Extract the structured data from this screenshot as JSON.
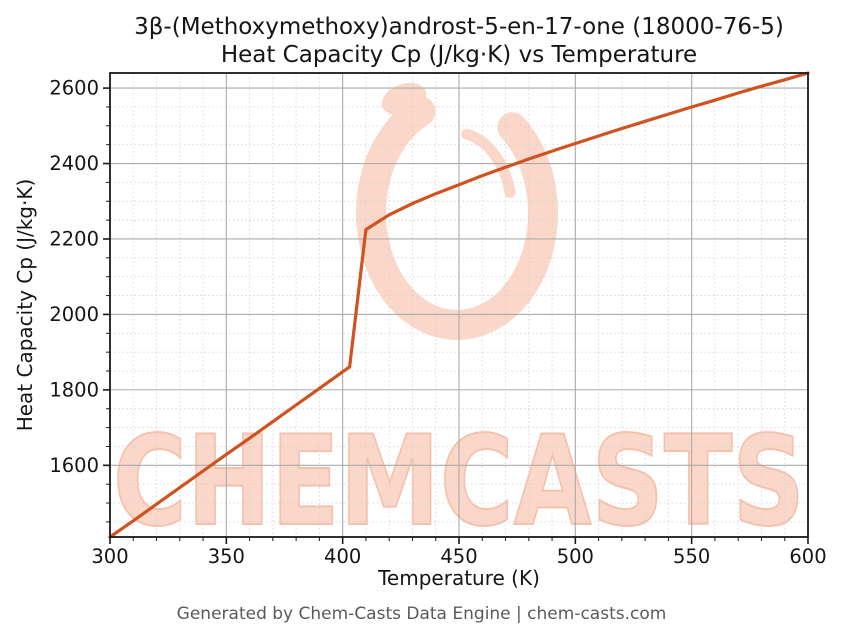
{
  "chart": {
    "title_line1": "3β-(Methoxymethoxy)androst-5-en-17-one (18000-76-5)",
    "title_line2": "Heat Capacity Cp (J/kg·K) vs Temperature",
    "xlabel": "Temperature (K)",
    "ylabel": "Heat Capacity Cp (J/kg·K)"
  },
  "footer": {
    "text": "Generated by Chem-Casts Data Engine | chem-casts.com"
  },
  "watermark": {
    "text": "CHEMCASTS",
    "logo": "chemcasts-swirl-logo"
  },
  "colors": {
    "line": "#d0521f",
    "major_grid": "#ababab",
    "minor_grid": "#d3d3d3",
    "spine": "#1a1a1a",
    "tick": "#1a1a1a",
    "watermark_fill": "#fbd7c9",
    "watermark_edge": "#f5c1ad",
    "footer_text": "#5a5a5a",
    "text": "#151515"
  },
  "chart_data": {
    "type": "line",
    "title": "3β-(Methoxymethoxy)androst-5-en-17-one (18000-76-5) — Heat Capacity Cp (J/kg·K) vs Temperature",
    "xlabel": "Temperature (K)",
    "ylabel": "Heat Capacity Cp (J/kg·K)",
    "xlim": [
      300,
      600
    ],
    "ylim": [
      1410,
      2640
    ],
    "x_major_ticks": [
      300,
      350,
      400,
      450,
      500,
      550,
      600
    ],
    "y_major_ticks": [
      1600,
      1800,
      2000,
      2200,
      2400,
      2600
    ],
    "x_minor_step": 10,
    "y_minor_step": 50,
    "grid": true,
    "legend": "none",
    "series": [
      {
        "name": "Heat Capacity Cp",
        "x": [
          300,
          310,
          320,
          330,
          340,
          350,
          360,
          370,
          380,
          390,
          400,
          403,
          410,
          420,
          430,
          440,
          450,
          460,
          470,
          480,
          490,
          500,
          510,
          520,
          530,
          540,
          550,
          560,
          570,
          580,
          590,
          600
        ],
        "y": [
          1410,
          1453,
          1497,
          1541,
          1585,
          1629,
          1672,
          1716,
          1760,
          1804,
          1848,
          1861,
          2225,
          2264,
          2294,
          2320,
          2344,
          2368,
          2390,
          2412,
          2433,
          2453,
          2473,
          2493,
          2512,
          2531,
          2550,
          2568,
          2587,
          2605,
          2622,
          2640
        ]
      }
    ]
  }
}
